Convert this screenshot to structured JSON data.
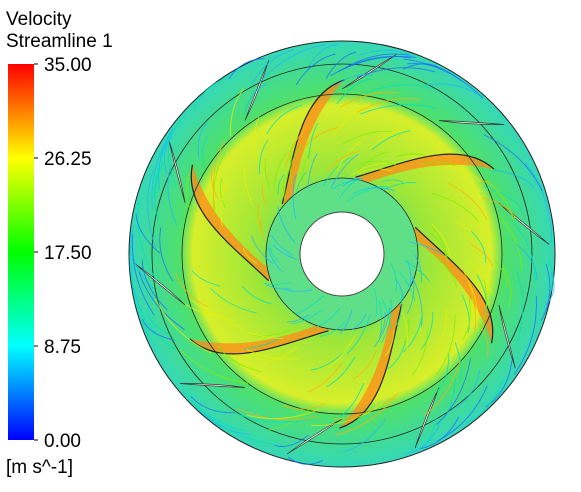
{
  "legend": {
    "title": "Velocity",
    "subtitle": "Streamline 1",
    "range": [
      0,
      35
    ],
    "ticks": [
      {
        "value": 0,
        "label": "0.00"
      },
      {
        "value": 8.75,
        "label": "8.75"
      },
      {
        "value": 17.5,
        "label": "17.50"
      },
      {
        "value": 26.25,
        "label": "26.25"
      },
      {
        "value": 35,
        "label": "35.00"
      }
    ],
    "unit": "[m s^-1]"
  }
}
